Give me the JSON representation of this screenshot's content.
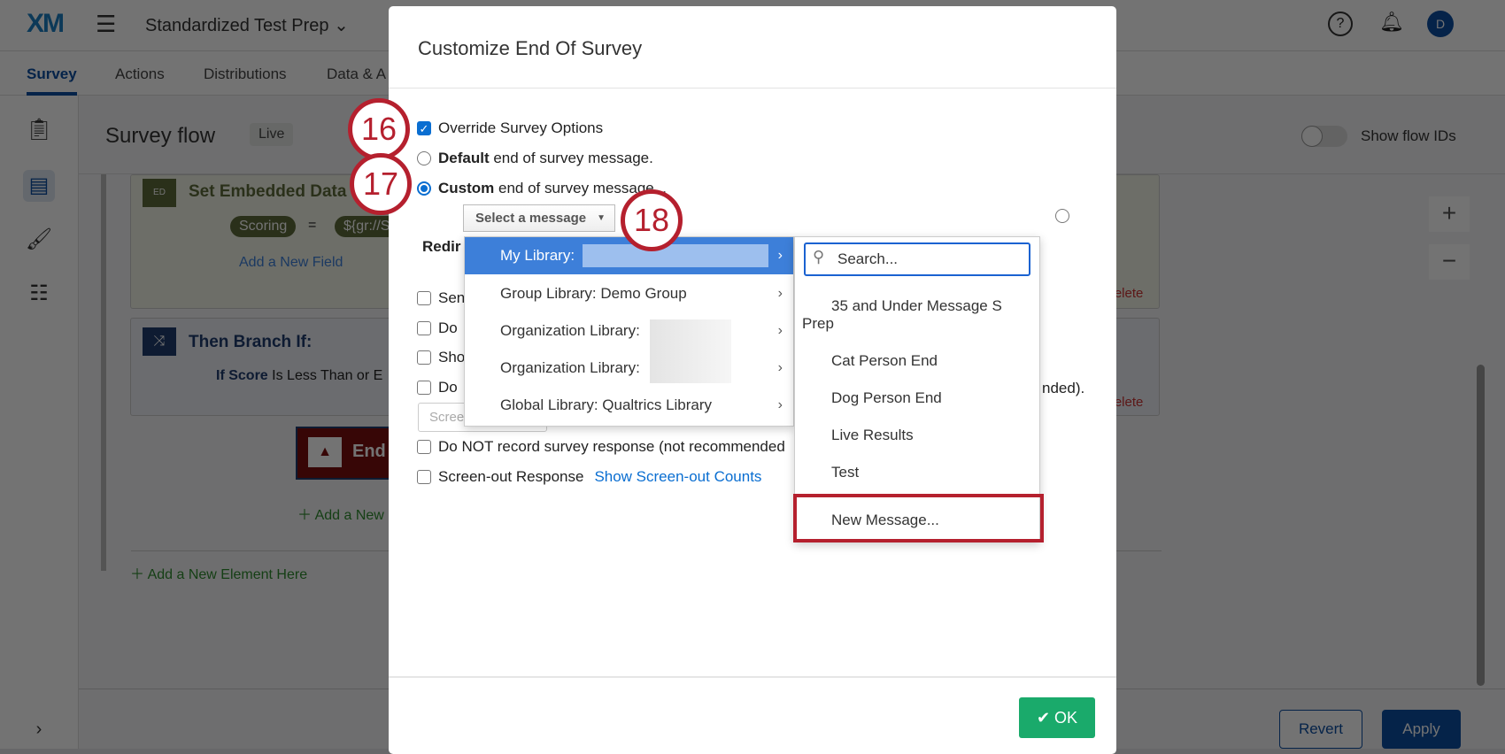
{
  "app": {
    "logo": "XM",
    "project_title": "Standardized Test Prep",
    "avatar_initial": "D"
  },
  "tabs": [
    {
      "label": "Survey",
      "active": true
    },
    {
      "label": "Actions"
    },
    {
      "label": "Distributions"
    },
    {
      "label": "Data & A"
    }
  ],
  "flow": {
    "title": "Survey flow",
    "status_badge": "Live",
    "show_flow_ids_label": "Show flow IDs",
    "show_flow_ids": false,
    "embedded_title": "Set Embedded Data",
    "embedded_badge": "ED",
    "field_name": "Scoring",
    "field_eq": "=",
    "field_value": "${gr://S",
    "add_field": "Add a New Field",
    "delete": "Delete",
    "branch_title": "Then Branch If:",
    "branch_if": "If",
    "branch_field": "Score",
    "branch_cond": "Is Less Than or E",
    "end_label": "End",
    "add_new_short": "Add a New",
    "add_new_element": "Add a New Element Here"
  },
  "footer": {
    "revert": "Revert",
    "apply": "Apply"
  },
  "modal": {
    "title": "Customize End Of Survey",
    "override": "Override Survey Options",
    "default_bold": "Default",
    "default_rest": " end of survey message.",
    "custom_bold": "Custom",
    "custom_rest": " end of survey message...",
    "select_placeholder": "Select a message",
    "redirect_partial": "Redir",
    "partial_options": [
      "Sen",
      "Do",
      "Sho",
      "Do"
    ],
    "screen_input_partial": "Scree",
    "not_recommended_tail": "nded).",
    "do_not_record": "Do NOT record survey response (not recommended",
    "screen_out": "Screen-out Response",
    "screen_out_link": "Show Screen-out Counts",
    "ok": "OK"
  },
  "library_menu": [
    {
      "label": "My Library:"
    },
    {
      "label": "Group Library: Demo Group"
    },
    {
      "label": "Organization Library:"
    },
    {
      "label": "Organization Library:"
    },
    {
      "label": "Global Library: Qualtrics Library"
    }
  ],
  "message_menu": {
    "search_placeholder": "Search...",
    "items": [
      "35 and Under Message S",
      "Prep",
      "Cat Person End",
      "Dog Person End",
      "Live Results",
      "Test"
    ],
    "new_message": "New Message..."
  },
  "callouts": [
    "16",
    "17",
    "18"
  ],
  "colors": {
    "accent": "#0a6ed1",
    "highlight": "#3d7fd9",
    "callout": "#b5202e",
    "ok": "#1aaa6b"
  }
}
